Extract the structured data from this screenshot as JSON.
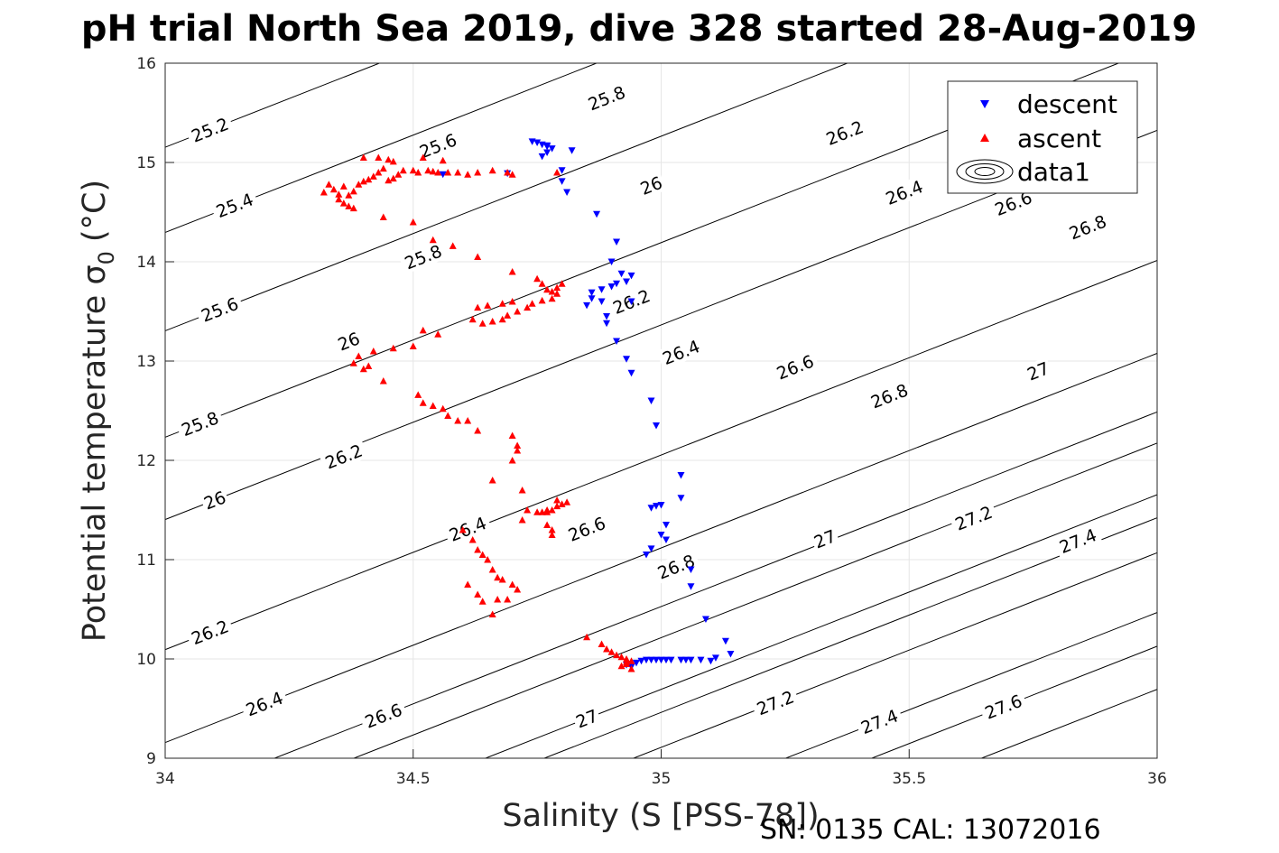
{
  "chart_data": {
    "type": "scatter",
    "title": "pH trial North Sea 2019, dive 328 started 28-Aug-2019",
    "xlabel": "Salinity (S [PSS-78])",
    "ylabel": "Potential temperature σ",
    "ylabel_sub": "0",
    "ylabel_unit": "(°C)",
    "footer": "SN: 0135  CAL: 13072016",
    "xlim": [
      34,
      36
    ],
    "ylim": [
      9,
      16
    ],
    "x_ticks": [
      "34",
      "34.5",
      "35",
      "35.5",
      "36"
    ],
    "y_ticks": [
      "9",
      "10",
      "11",
      "12",
      "13",
      "14",
      "15",
      "16"
    ],
    "grid": true,
    "legend_position": "top-right",
    "legend": [
      "descent",
      "ascent",
      "data1"
    ],
    "colors": {
      "descent": "#0000ff",
      "ascent": "#ff0000",
      "contour": "#000000"
    },
    "contours": {
      "levels": [
        "25.2",
        "25.4",
        "25.6",
        "25.8",
        "26",
        "26.2",
        "26.4",
        "26.6",
        "26.8",
        "27",
        "27.2",
        "27.4",
        "27.6"
      ],
      "labels": [
        {
          "text": "25.2",
          "x": 34.09,
          "y": 15.33
        },
        {
          "text": "25.4",
          "x": 34.14,
          "y": 14.57
        },
        {
          "text": "25.6",
          "x": 34.11,
          "y": 13.52
        },
        {
          "text": "25.8",
          "x": 34.07,
          "y": 12.37
        },
        {
          "text": "26",
          "x": 34.1,
          "y": 11.6
        },
        {
          "text": "26.2",
          "x": 34.09,
          "y": 10.27
        },
        {
          "text": "26.4",
          "x": 34.2,
          "y": 9.55
        },
        {
          "text": "26.6",
          "x": 34.44,
          "y": 9.43
        },
        {
          "text": "27",
          "x": 34.85,
          "y": 9.4
        },
        {
          "text": "27.2",
          "x": 35.23,
          "y": 9.56
        },
        {
          "text": "27.4",
          "x": 35.44,
          "y": 9.37
        },
        {
          "text": "27.6",
          "x": 35.69,
          "y": 9.52
        },
        {
          "text": "25.6",
          "x": 34.55,
          "y": 15.17
        },
        {
          "text": "25.8",
          "x": 34.89,
          "y": 15.65
        },
        {
          "text": "25.8",
          "x": 34.52,
          "y": 14.05
        },
        {
          "text": "26",
          "x": 34.37,
          "y": 13.2
        },
        {
          "text": "26",
          "x": 34.98,
          "y": 14.77
        },
        {
          "text": "26.2",
          "x": 34.36,
          "y": 12.04
        },
        {
          "text": "26.2",
          "x": 34.94,
          "y": 13.6
        },
        {
          "text": "26.2",
          "x": 35.37,
          "y": 15.3
        },
        {
          "text": "26.4",
          "x": 34.61,
          "y": 11.31
        },
        {
          "text": "26.4",
          "x": 35.04,
          "y": 13.09
        },
        {
          "text": "26.4",
          "x": 35.49,
          "y": 14.7
        },
        {
          "text": "26.6",
          "x": 34.85,
          "y": 11.31
        },
        {
          "text": "26.6",
          "x": 35.27,
          "y": 12.94
        },
        {
          "text": "26.6",
          "x": 35.71,
          "y": 14.59
        },
        {
          "text": "26.8",
          "x": 35.03,
          "y": 10.93
        },
        {
          "text": "26.8",
          "x": 35.46,
          "y": 12.65
        },
        {
          "text": "26.8",
          "x": 35.86,
          "y": 14.35
        },
        {
          "text": "27",
          "x": 35.33,
          "y": 11.21
        },
        {
          "text": "27",
          "x": 35.76,
          "y": 12.9
        },
        {
          "text": "27.2",
          "x": 35.63,
          "y": 11.42
        },
        {
          "text": "27.4",
          "x": 35.84,
          "y": 11.19
        }
      ]
    },
    "series": [
      {
        "name": "descent",
        "marker": "triangle-down",
        "points": [
          [
            34.56,
            14.88
          ],
          [
            34.69,
            14.89
          ],
          [
            34.74,
            15.21
          ],
          [
            34.75,
            15.2
          ],
          [
            34.76,
            15.18
          ],
          [
            34.77,
            15.16
          ],
          [
            34.78,
            15.14
          ],
          [
            34.77,
            15.1
          ],
          [
            34.76,
            15.06
          ],
          [
            34.77,
            15.17
          ],
          [
            34.82,
            15.12
          ],
          [
            34.8,
            14.92
          ],
          [
            34.8,
            14.81
          ],
          [
            34.81,
            14.7
          ],
          [
            34.85,
            13.56
          ],
          [
            34.86,
            13.63
          ],
          [
            34.86,
            13.69
          ],
          [
            34.88,
            13.72
          ],
          [
            34.9,
            13.75
          ],
          [
            34.91,
            13.78
          ],
          [
            34.93,
            13.8
          ],
          [
            34.94,
            13.86
          ],
          [
            34.88,
            13.6
          ],
          [
            34.89,
            13.45
          ],
          [
            34.89,
            13.38
          ],
          [
            34.91,
            13.2
          ],
          [
            34.93,
            13.02
          ],
          [
            34.94,
            12.88
          ],
          [
            34.87,
            14.48
          ],
          [
            34.91,
            14.2
          ],
          [
            34.9,
            14.0
          ],
          [
            34.92,
            13.88
          ],
          [
            34.94,
            13.6
          ],
          [
            34.98,
            12.6
          ],
          [
            34.99,
            12.35
          ],
          [
            34.98,
            11.52
          ],
          [
            34.99,
            11.54
          ],
          [
            35.0,
            11.55
          ],
          [
            35.04,
            11.62
          ],
          [
            35.04,
            11.85
          ],
          [
            35.01,
            11.35
          ],
          [
            35.0,
            11.25
          ],
          [
            34.98,
            11.11
          ],
          [
            34.97,
            11.05
          ],
          [
            35.01,
            11.2
          ],
          [
            35.06,
            10.9
          ],
          [
            35.06,
            10.73
          ],
          [
            35.09,
            10.4
          ],
          [
            34.95,
            9.96
          ],
          [
            34.96,
            9.98
          ],
          [
            34.97,
            9.99
          ],
          [
            34.98,
            9.99
          ],
          [
            34.99,
            9.99
          ],
          [
            35.0,
            9.99
          ],
          [
            35.01,
            9.99
          ],
          [
            35.02,
            9.99
          ],
          [
            35.04,
            9.99
          ],
          [
            35.05,
            9.99
          ],
          [
            35.06,
            9.99
          ],
          [
            35.08,
            9.99
          ],
          [
            35.1,
            9.98
          ],
          [
            35.11,
            10.01
          ],
          [
            35.13,
            10.18
          ],
          [
            35.14,
            10.05
          ],
          [
            34.94,
            9.92
          ],
          [
            34.93,
            9.94
          ]
        ]
      },
      {
        "name": "ascent",
        "marker": "triangle-up",
        "points": [
          [
            34.32,
            14.7
          ],
          [
            34.33,
            14.78
          ],
          [
            34.34,
            14.73
          ],
          [
            34.35,
            14.68
          ],
          [
            34.35,
            14.63
          ],
          [
            34.36,
            14.59
          ],
          [
            34.37,
            14.56
          ],
          [
            34.38,
            14.54
          ],
          [
            34.36,
            14.76
          ],
          [
            34.37,
            14.67
          ],
          [
            34.38,
            14.71
          ],
          [
            34.39,
            14.78
          ],
          [
            34.4,
            14.81
          ],
          [
            34.41,
            14.83
          ],
          [
            34.42,
            14.86
          ],
          [
            34.43,
            14.9
          ],
          [
            34.44,
            14.94
          ],
          [
            34.45,
            14.82
          ],
          [
            34.46,
            14.84
          ],
          [
            34.47,
            14.88
          ],
          [
            34.48,
            14.92
          ],
          [
            34.5,
            14.92
          ],
          [
            34.51,
            14.9
          ],
          [
            34.53,
            14.92
          ],
          [
            34.54,
            14.91
          ],
          [
            34.55,
            14.9
          ],
          [
            34.57,
            14.9
          ],
          [
            34.59,
            14.9
          ],
          [
            34.61,
            14.88
          ],
          [
            34.63,
            14.9
          ],
          [
            34.66,
            14.92
          ],
          [
            34.69,
            14.9
          ],
          [
            34.7,
            14.88
          ],
          [
            34.4,
            15.05
          ],
          [
            34.43,
            15.05
          ],
          [
            34.45,
            15.03
          ],
          [
            34.46,
            15.01
          ],
          [
            34.52,
            15.05
          ],
          [
            34.56,
            15.02
          ],
          [
            34.79,
            14.9
          ],
          [
            34.44,
            14.45
          ],
          [
            34.5,
            14.4
          ],
          [
            34.54,
            14.22
          ],
          [
            34.58,
            14.16
          ],
          [
            34.63,
            14.05
          ],
          [
            34.7,
            13.9
          ],
          [
            34.75,
            13.83
          ],
          [
            34.76,
            13.78
          ],
          [
            34.77,
            13.72
          ],
          [
            34.78,
            13.7
          ],
          [
            34.79,
            13.74
          ],
          [
            34.8,
            13.78
          ],
          [
            34.79,
            13.68
          ],
          [
            34.78,
            13.63
          ],
          [
            34.76,
            13.61
          ],
          [
            34.74,
            13.58
          ],
          [
            34.73,
            13.54
          ],
          [
            34.71,
            13.5
          ],
          [
            34.69,
            13.46
          ],
          [
            34.68,
            13.42
          ],
          [
            34.66,
            13.4
          ],
          [
            34.64,
            13.38
          ],
          [
            34.62,
            13.42
          ],
          [
            34.63,
            13.54
          ],
          [
            34.65,
            13.56
          ],
          [
            34.68,
            13.58
          ],
          [
            34.7,
            13.6
          ],
          [
            34.52,
            13.31
          ],
          [
            34.55,
            13.27
          ],
          [
            34.5,
            13.15
          ],
          [
            34.46,
            13.13
          ],
          [
            34.39,
            13.05
          ],
          [
            34.4,
            12.92
          ],
          [
            34.41,
            12.95
          ],
          [
            34.44,
            12.8
          ],
          [
            34.38,
            12.98
          ],
          [
            34.42,
            13.1
          ],
          [
            34.51,
            12.66
          ],
          [
            34.52,
            12.58
          ],
          [
            34.54,
            12.55
          ],
          [
            34.56,
            12.52
          ],
          [
            34.57,
            12.45
          ],
          [
            34.59,
            12.4
          ],
          [
            34.61,
            12.4
          ],
          [
            34.63,
            12.3
          ],
          [
            34.7,
            12.25
          ],
          [
            34.71,
            12.15
          ],
          [
            34.71,
            12.1
          ],
          [
            34.7,
            12.0
          ],
          [
            34.66,
            11.8
          ],
          [
            34.72,
            11.7
          ],
          [
            34.73,
            11.5
          ],
          [
            34.75,
            11.48
          ],
          [
            34.76,
            11.48
          ],
          [
            34.77,
            11.48
          ],
          [
            34.78,
            11.5
          ],
          [
            34.79,
            11.54
          ],
          [
            34.8,
            11.56
          ],
          [
            34.81,
            11.58
          ],
          [
            34.79,
            11.6
          ],
          [
            34.77,
            11.5
          ],
          [
            34.72,
            11.4
          ],
          [
            34.77,
            11.35
          ],
          [
            34.78,
            11.3
          ],
          [
            34.78,
            11.25
          ],
          [
            34.6,
            11.3
          ],
          [
            34.62,
            11.2
          ],
          [
            34.63,
            11.1
          ],
          [
            34.64,
            11.05
          ],
          [
            34.65,
            11.0
          ],
          [
            34.66,
            10.9
          ],
          [
            34.67,
            10.82
          ],
          [
            34.68,
            10.8
          ],
          [
            34.7,
            10.75
          ],
          [
            34.71,
            10.7
          ],
          [
            34.69,
            10.6
          ],
          [
            34.67,
            10.6
          ],
          [
            34.66,
            10.45
          ],
          [
            34.64,
            10.58
          ],
          [
            34.63,
            10.65
          ],
          [
            34.61,
            10.75
          ],
          [
            34.85,
            10.22
          ],
          [
            34.88,
            10.15
          ],
          [
            34.89,
            10.1
          ],
          [
            34.9,
            10.07
          ],
          [
            34.91,
            10.04
          ],
          [
            34.92,
            10.02
          ],
          [
            34.93,
            10.0
          ],
          [
            34.94,
            9.98
          ],
          [
            34.93,
            9.95
          ],
          [
            34.92,
            9.93
          ],
          [
            34.94,
            9.9
          ],
          [
            34.93,
            9.97
          ]
        ]
      }
    ]
  }
}
